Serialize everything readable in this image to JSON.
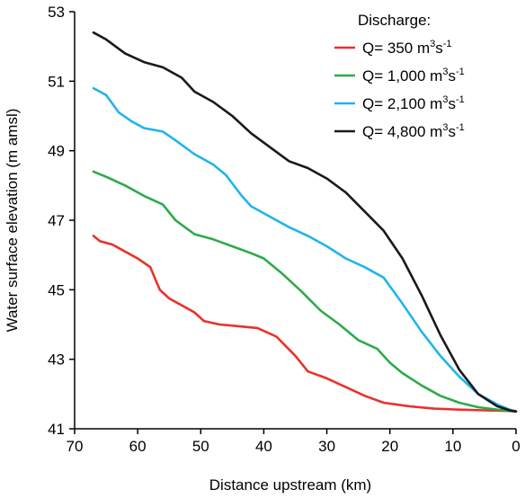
{
  "chart_data": {
    "type": "line",
    "xlabel": "Distance upstream (km)",
    "ylabel": "Water surface elevation (m amsl)",
    "xlim": [
      70,
      0
    ],
    "ylim": [
      41,
      53
    ],
    "x_reversed": true,
    "x_ticks": [
      "70",
      "60",
      "50",
      "40",
      "30",
      "20",
      "10",
      "0"
    ],
    "y_ticks": [
      "41",
      "43",
      "45",
      "47",
      "49",
      "51",
      "53"
    ],
    "legend": {
      "title": "Discharge:",
      "placement": "top-right"
    },
    "series": [
      {
        "name": "Q= 350 m³s⁻¹",
        "name_parts": {
          "prefix": "Q= 350 m",
          "sup1": "3",
          "mid": "s",
          "sup2": "-1"
        },
        "color": "#e8322b",
        "points": [
          [
            67,
            46.55
          ],
          [
            66,
            46.4
          ],
          [
            64,
            46.3
          ],
          [
            62,
            46.1
          ],
          [
            60,
            45.9
          ],
          [
            58,
            45.65
          ],
          [
            56.5,
            45.0
          ],
          [
            55,
            44.75
          ],
          [
            53,
            44.55
          ],
          [
            51,
            44.35
          ],
          [
            49.5,
            44.1
          ],
          [
            47,
            44.0
          ],
          [
            44,
            43.95
          ],
          [
            41,
            43.9
          ],
          [
            38,
            43.65
          ],
          [
            35,
            43.1
          ],
          [
            33,
            42.65
          ],
          [
            30,
            42.45
          ],
          [
            27,
            42.2
          ],
          [
            24,
            41.95
          ],
          [
            21,
            41.75
          ],
          [
            17,
            41.65
          ],
          [
            13,
            41.58
          ],
          [
            9,
            41.55
          ],
          [
            5,
            41.53
          ],
          [
            2,
            41.52
          ],
          [
            0,
            41.5
          ]
        ]
      },
      {
        "name": "Q= 1,000 m³s⁻¹",
        "name_parts": {
          "prefix": "Q= 1,000 m",
          "sup1": "3",
          "mid": "s",
          "sup2": "-1"
        },
        "color": "#2eaa4a",
        "points": [
          [
            67,
            48.4
          ],
          [
            65,
            48.25
          ],
          [
            62,
            48.0
          ],
          [
            59,
            47.7
          ],
          [
            56,
            47.45
          ],
          [
            54,
            47.0
          ],
          [
            51,
            46.6
          ],
          [
            48,
            46.45
          ],
          [
            45,
            46.25
          ],
          [
            42,
            46.05
          ],
          [
            40,
            45.9
          ],
          [
            37,
            45.45
          ],
          [
            34,
            44.95
          ],
          [
            31,
            44.4
          ],
          [
            28,
            44.0
          ],
          [
            25,
            43.55
          ],
          [
            22,
            43.3
          ],
          [
            20,
            42.9
          ],
          [
            18,
            42.6
          ],
          [
            15,
            42.25
          ],
          [
            12,
            41.95
          ],
          [
            9,
            41.75
          ],
          [
            6,
            41.62
          ],
          [
            3,
            41.55
          ],
          [
            0,
            41.5
          ]
        ]
      },
      {
        "name": "Q= 2,100 m³s⁻¹",
        "name_parts": {
          "prefix": "Q= 2,100 m",
          "sup1": "3",
          "mid": "s",
          "sup2": "-1"
        },
        "color": "#21b4ec",
        "points": [
          [
            67,
            50.8
          ],
          [
            65,
            50.6
          ],
          [
            63,
            50.1
          ],
          [
            61,
            49.85
          ],
          [
            59,
            49.65
          ],
          [
            56,
            49.55
          ],
          [
            54,
            49.3
          ],
          [
            51,
            48.9
          ],
          [
            48,
            48.6
          ],
          [
            46,
            48.3
          ],
          [
            43.5,
            47.7
          ],
          [
            42,
            47.4
          ],
          [
            39,
            47.1
          ],
          [
            36,
            46.8
          ],
          [
            33,
            46.55
          ],
          [
            30,
            46.25
          ],
          [
            27,
            45.9
          ],
          [
            24,
            45.65
          ],
          [
            21,
            45.35
          ],
          [
            18,
            44.6
          ],
          [
            15,
            43.8
          ],
          [
            12,
            43.1
          ],
          [
            9,
            42.5
          ],
          [
            6,
            42.0
          ],
          [
            3,
            41.7
          ],
          [
            1,
            41.55
          ],
          [
            0,
            41.5
          ]
        ]
      },
      {
        "name": "Q= 4,800 m³s⁻¹",
        "name_parts": {
          "prefix": "Q= 4,800 m",
          "sup1": "3",
          "mid": "s",
          "sup2": "-1"
        },
        "color": "#1a1a1a",
        "points": [
          [
            67,
            52.4
          ],
          [
            65,
            52.2
          ],
          [
            62,
            51.8
          ],
          [
            59,
            51.55
          ],
          [
            56,
            51.4
          ],
          [
            53,
            51.1
          ],
          [
            51,
            50.7
          ],
          [
            48,
            50.4
          ],
          [
            45,
            50.0
          ],
          [
            42,
            49.5
          ],
          [
            39,
            49.1
          ],
          [
            36,
            48.7
          ],
          [
            33,
            48.5
          ],
          [
            30,
            48.2
          ],
          [
            27,
            47.8
          ],
          [
            24,
            47.25
          ],
          [
            21,
            46.7
          ],
          [
            18,
            45.9
          ],
          [
            15,
            44.85
          ],
          [
            12,
            43.7
          ],
          [
            9,
            42.7
          ],
          [
            6,
            42.0
          ],
          [
            3,
            41.65
          ],
          [
            1,
            41.53
          ],
          [
            0,
            41.5
          ]
        ]
      }
    ]
  }
}
